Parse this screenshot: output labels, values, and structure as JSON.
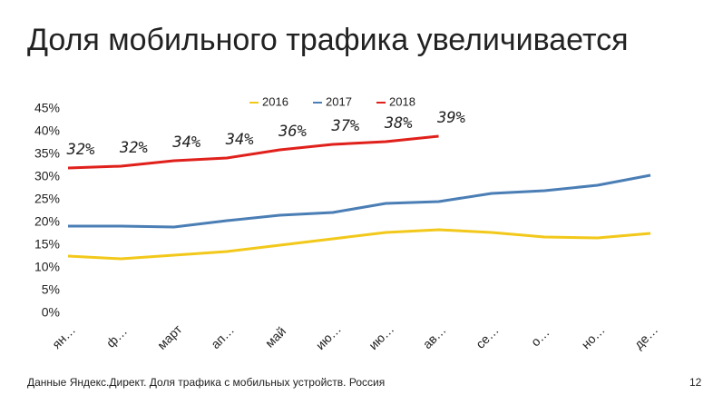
{
  "chart_data": {
    "type": "line",
    "title": "Доля мобильного трафика увеличивается",
    "footer": "Данные Яндекс.Директ. Доля трафика с мобильных устройств. Россия",
    "page_number": "12",
    "categories": [
      "ян…",
      "ф…",
      "март",
      "ап…",
      "май",
      "ию…",
      "ию…",
      "ав…",
      "се…",
      "о…",
      "но…",
      "де…"
    ],
    "series": [
      {
        "name": "2016",
        "color": "#f2c81a",
        "values": [
          12.6,
          12,
          12.8,
          13.6,
          15,
          16.4,
          17.8,
          18.4,
          17.8,
          16.8,
          16.6,
          17.6
        ]
      },
      {
        "name": "2017",
        "color": "#4a7eb5",
        "values": [
          19.2,
          19.2,
          19,
          20.4,
          21.6,
          22.2,
          24.2,
          24.6,
          26.4,
          27,
          28.2,
          30.4
        ]
      },
      {
        "name": "2018",
        "color": "#e0201b",
        "values": [
          32,
          32.4,
          33.6,
          34.2,
          36,
          37.2,
          37.8,
          39,
          null,
          null,
          null,
          null
        ],
        "value_labels": [
          "32%",
          "32%",
          "34%",
          "34%",
          "36%",
          "37%",
          "38%",
          "39%",
          null,
          null,
          null,
          null
        ]
      }
    ],
    "ylim": [
      0,
      45
    ],
    "yticks": [
      {
        "value": 0,
        "label": "0%"
      },
      {
        "value": 5,
        "label": "5%"
      },
      {
        "value": 10,
        "label": "10%"
      },
      {
        "value": 15,
        "label": "15%"
      },
      {
        "value": 20,
        "label": "20%"
      },
      {
        "value": 25,
        "label": "25%"
      },
      {
        "value": 30,
        "label": "30%"
      },
      {
        "value": 35,
        "label": "35%"
      },
      {
        "value": 40,
        "label": "40%"
      },
      {
        "value": 45,
        "label": "45%"
      }
    ],
    "legend": "top"
  }
}
